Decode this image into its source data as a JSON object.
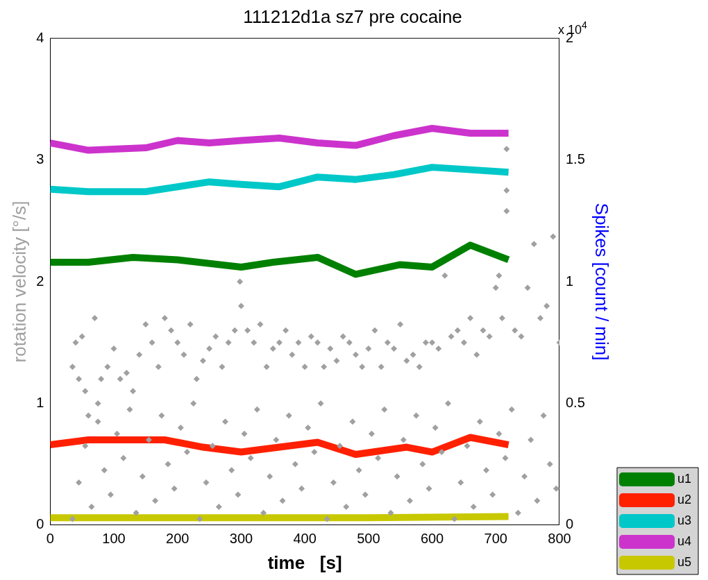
{
  "chart_data": {
    "type": "line",
    "title": "111212d1a sz7 pre cocaine",
    "xlabel": "time   [s]",
    "ylabel": "rotation velocity [°/s]",
    "y2label": "Spikes [count / min]",
    "annotations": [
      "x 10$^{4}$"
    ],
    "xlim": [
      0,
      800
    ],
    "xticks": [
      0,
      100,
      200,
      300,
      400,
      500,
      600,
      700,
      800
    ],
    "ylim": [
      0,
      4
    ],
    "yticks": [
      0,
      1,
      2,
      3,
      4
    ],
    "y2lim": [
      0,
      2
    ],
    "y2ticks": [
      0,
      0.5,
      1,
      1.5,
      2
    ],
    "legend": "bottom right",
    "series": [
      {
        "type": "scatter",
        "color": "#a0a0a0",
        "marker": "diamond",
        "x": [
          35,
          40,
          45,
          50,
          55,
          60,
          70,
          75,
          80,
          90,
          100,
          110,
          120,
          130,
          140,
          150,
          160,
          170,
          180,
          190,
          200,
          210,
          220,
          230,
          240,
          250,
          260,
          270,
          280,
          290,
          298,
          300,
          310,
          320,
          330,
          340,
          350,
          360,
          370,
          380,
          390,
          400,
          410,
          420,
          430,
          440,
          450,
          460,
          470,
          480,
          490,
          500,
          510,
          520,
          530,
          540,
          550,
          560,
          570,
          580,
          590,
          600,
          610,
          620,
          630,
          640,
          650,
          660,
          670,
          680,
          690,
          700,
          705,
          710,
          717,
          717,
          717,
          730,
          740,
          750,
          760,
          770,
          780,
          790,
          800,
          35,
          45,
          55,
          65,
          75,
          85,
          95,
          105,
          115,
          125,
          135,
          145,
          155,
          165,
          175,
          185,
          195,
          205,
          215,
          225,
          235,
          245,
          255,
          265,
          275,
          285,
          295,
          305,
          315,
          325,
          335,
          345,
          355,
          365,
          375,
          385,
          395,
          405,
          415,
          425,
          435,
          445,
          455,
          465,
          475,
          485,
          495,
          505,
          515,
          525,
          535,
          545,
          555,
          565,
          575,
          585,
          595,
          605,
          615,
          625,
          635,
          645,
          655,
          665,
          675,
          685,
          695,
          705,
          715,
          725,
          735,
          745,
          755,
          765,
          775,
          785,
          795
        ],
        "values": [
          1.3,
          1.5,
          1.2,
          1.55,
          1.1,
          0.9,
          1.7,
          1.0,
          1.2,
          1.3,
          1.45,
          1.2,
          1.25,
          1.1,
          1.4,
          1.65,
          1.5,
          1.3,
          1.7,
          1.6,
          1.5,
          1.4,
          1.65,
          1.2,
          1.35,
          1.45,
          1.55,
          1.3,
          1.5,
          1.6,
          2.0,
          1.8,
          1.6,
          1.5,
          1.65,
          1.3,
          1.45,
          1.5,
          1.6,
          1.4,
          1.5,
          1.3,
          1.55,
          1.5,
          1.3,
          1.45,
          1.35,
          1.55,
          1.5,
          1.4,
          1.3,
          1.45,
          1.6,
          1.3,
          1.5,
          1.45,
          1.65,
          1.35,
          1.4,
          1.3,
          1.5,
          1.5,
          1.45,
          2.05,
          1.55,
          1.6,
          1.5,
          1.7,
          1.4,
          1.6,
          1.55,
          1.95,
          2.05,
          1.7,
          2.58,
          3.09,
          2.75,
          1.6,
          1.55,
          1.95,
          2.31,
          1.7,
          1.8,
          2.37,
          1.5,
          0.05,
          0.35,
          0.65,
          0.15,
          0.85,
          0.45,
          0.25,
          0.75,
          0.55,
          0.95,
          0.1,
          0.4,
          0.7,
          0.2,
          0.9,
          0.5,
          0.3,
          0.8,
          0.6,
          1.0,
          0.05,
          0.35,
          0.65,
          0.15,
          0.85,
          0.45,
          0.25,
          0.75,
          0.55,
          0.95,
          0.1,
          0.4,
          0.7,
          0.2,
          0.9,
          0.5,
          0.3,
          0.8,
          0.6,
          1.0,
          0.05,
          0.35,
          0.65,
          0.15,
          0.85,
          0.45,
          0.25,
          0.75,
          0.55,
          0.95,
          0.1,
          0.4,
          0.7,
          0.2,
          0.9,
          0.5,
          0.3,
          0.8,
          0.6,
          1.0,
          0.05,
          0.35,
          0.65,
          0.15,
          0.85,
          0.45,
          0.25,
          0.75,
          0.55,
          0.95,
          0.1,
          0.4,
          0.7,
          0.2,
          0.9,
          0.5,
          0.3
        ]
      },
      {
        "name": "u1",
        "color": "#008000",
        "axis": "y2",
        "x": [
          0,
          60,
          130,
          200,
          300,
          350,
          420,
          480,
          550,
          600,
          660,
          720
        ],
        "values": [
          1.08,
          1.08,
          1.1,
          1.09,
          1.06,
          1.08,
          1.1,
          1.03,
          1.07,
          1.06,
          1.15,
          1.09
        ]
      },
      {
        "name": "u2",
        "color": "#ff2000",
        "axis": "y2",
        "x": [
          0,
          60,
          180,
          240,
          300,
          420,
          480,
          560,
          600,
          660,
          720
        ],
        "values": [
          0.33,
          0.35,
          0.35,
          0.32,
          0.3,
          0.34,
          0.29,
          0.32,
          0.3,
          0.36,
          0.33
        ]
      },
      {
        "name": "u3",
        "color": "#00c8c8",
        "axis": "y2",
        "x": [
          0,
          60,
          150,
          200,
          250,
          300,
          360,
          420,
          480,
          540,
          600,
          660,
          720
        ],
        "values": [
          1.38,
          1.37,
          1.37,
          1.39,
          1.41,
          1.4,
          1.39,
          1.43,
          1.42,
          1.44,
          1.47,
          1.46,
          1.45
        ]
      },
      {
        "name": "u4",
        "color": "#cc33cc",
        "axis": "y2",
        "x": [
          0,
          60,
          150,
          200,
          250,
          300,
          360,
          420,
          480,
          540,
          600,
          660,
          720
        ],
        "values": [
          1.57,
          1.54,
          1.55,
          1.58,
          1.57,
          1.58,
          1.59,
          1.57,
          1.56,
          1.6,
          1.63,
          1.61,
          1.61
        ]
      },
      {
        "name": "u5",
        "color": "#c8c800",
        "axis": "y2",
        "x": [
          0,
          500,
          720
        ],
        "values": [
          0.03,
          0.03,
          0.035
        ]
      }
    ]
  }
}
